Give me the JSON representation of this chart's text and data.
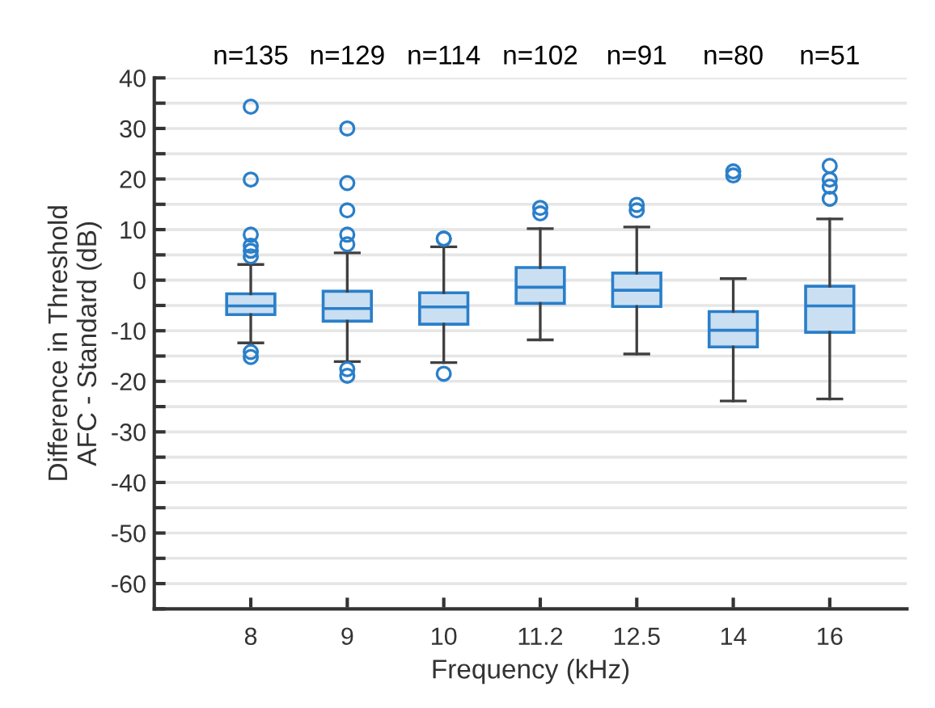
{
  "chart_data": {
    "type": "box",
    "xlabel": "Frequency (kHz)",
    "ylabel": "Difference in Threshold\nAFC - Standard (dB)",
    "categories": [
      "8",
      "9",
      "10",
      "11.2",
      "12.5",
      "14",
      "16"
    ],
    "annotations": [
      "n=135",
      "n=129",
      "n=114",
      "n=102",
      "n=91",
      "n=80",
      "n=51"
    ],
    "series": [
      {
        "color": "#2a7fc9",
        "boxes": [
          {
            "low": -12.4,
            "q1": -6.8,
            "median": -5.1,
            "q3": -2.7,
            "high": 3.1,
            "outliers": [
              34.3,
              19.9,
              9.0,
              6.8,
              5.8,
              4.7,
              -14.2,
              -15.2
            ]
          },
          {
            "low": -16.1,
            "q1": -8.1,
            "median": -5.6,
            "q3": -2.2,
            "high": 5.4,
            "outliers": [
              30.0,
              19.2,
              13.8,
              9.0,
              7.1,
              -17.6,
              -18.9
            ]
          },
          {
            "low": -16.3,
            "q1": -8.7,
            "median": -5.3,
            "q3": -2.5,
            "high": 6.6,
            "outliers": [
              8.2,
              8.2,
              -18.5
            ]
          },
          {
            "low": -11.8,
            "q1": -4.6,
            "median": -1.4,
            "q3": 2.5,
            "high": 10.2,
            "outliers": [
              14.3,
              13.2
            ]
          },
          {
            "low": -14.6,
            "q1": -5.2,
            "median": -2.0,
            "q3": 1.4,
            "high": 10.5,
            "outliers": [
              14.9,
              13.8
            ]
          },
          {
            "low": -23.9,
            "q1": -13.2,
            "median": -9.9,
            "q3": -6.2,
            "high": 0.3,
            "outliers": [
              21.5,
              20.7
            ]
          },
          {
            "low": -23.5,
            "q1": -10.3,
            "median": -5.1,
            "q3": -1.2,
            "high": 12.1,
            "outliers": [
              22.6,
              19.9,
              18.5,
              16.1
            ]
          }
        ]
      }
    ],
    "ylim": [
      -65,
      40
    ],
    "yticks": [
      {
        "value": -65,
        "label": null
      },
      -60,
      {
        "value": -55,
        "label": null
      },
      -50,
      {
        "value": -45,
        "label": null
      },
      -40,
      {
        "value": -35,
        "label": null
      },
      -30,
      {
        "value": -25,
        "label": null
      },
      -20,
      {
        "value": -15,
        "label": null
      },
      -10,
      {
        "value": -5,
        "label": null
      },
      0,
      {
        "value": 5,
        "label": null
      },
      10,
      {
        "value": 15,
        "label": null
      },
      20,
      {
        "value": 25,
        "label": null
      },
      30,
      {
        "value": 35,
        "label": null
      },
      40
    ],
    "grid": "y",
    "legend": false
  }
}
